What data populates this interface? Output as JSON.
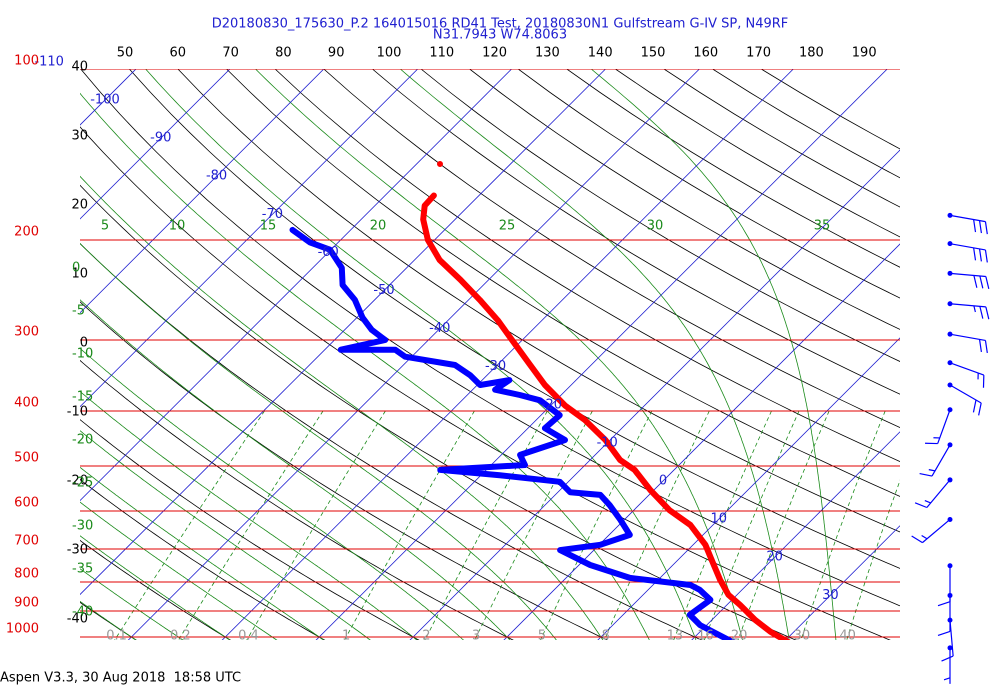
{
  "chart_data": {
    "type": "skewt",
    "title": "D20180830_175630_P.2 164015016 RD41 Test, 20180830N1 Gulfstream G-IV SP, N49RF",
    "subtitle": "N31.7943 W74.8063",
    "footer": "Aspen V3.3, 30 Aug 2018  18:58 UTC",
    "ylog": true,
    "ylim": [
      1000,
      100
    ],
    "yticks": [
      100,
      200,
      300,
      400,
      500,
      600,
      700,
      800,
      900,
      1000
    ],
    "isotherms": [
      -110,
      -100,
      -90,
      -80,
      -70,
      -60,
      -50,
      -40,
      -30,
      -20,
      -10,
      0,
      10,
      20,
      30
    ],
    "dry_adiabats": [
      -40,
      -30,
      -20,
      -10,
      0,
      10,
      20,
      30,
      40,
      50,
      60,
      70,
      80,
      90,
      100,
      110,
      120,
      130,
      140,
      150,
      160,
      170,
      180,
      190
    ],
    "moist_adiabats": [
      -40,
      -35,
      -30,
      -25,
      -20,
      -15,
      -10,
      -5,
      0,
      5,
      10,
      15,
      20,
      25,
      30,
      35
    ],
    "mixing_ratios": [
      0.1,
      0.2,
      0.4,
      1,
      2,
      3,
      5,
      8,
      13,
      16,
      20,
      30,
      40
    ],
    "series": [
      {
        "color": "#ff0000",
        "pressure": [
          147,
          null,
          167,
          174,
          184,
          200,
          217,
          235,
          255,
          277,
          300,
          332,
          360,
          391,
          415,
          450,
          488,
          508,
          551,
          598,
          635,
          688,
          732,
          793,
          843,
          878,
          933,
          979,
          1025
        ],
        "values": [
          -57.5,
          null,
          -54.8,
          -54.7,
          -53.4,
          -50.7,
          -47.3,
          -43.0,
          -38.8,
          -34.7,
          -31.1,
          -26.5,
          -22.8,
          -18.5,
          -14.8,
          -10.5,
          -6.8,
          -4.2,
          -0.4,
          3.8,
          7.6,
          11.3,
          13.6,
          16.6,
          19.1,
          21.4,
          24.6,
          27.5,
          30.8
        ]
      },
      {
        "color": "#0000ff",
        "pressure": [
          192,
          202,
          208,
          224,
          240,
          255,
          274,
          288,
          300,
          312,
          312,
          321,
          332,
          346,
          360,
          353,
          367,
          375,
          383,
          407,
          429,
          450,
          478,
          498,
          508,
          519,
          533,
          556,
          562,
          586,
          622,
          661,
          688,
          703,
          747,
          787,
          810,
          826,
          860,
          914,
          953,
          1025
        ],
        "values": [
          -66.2,
          -63.0,
          -60.1,
          -56.9,
          -55.0,
          -52.1,
          -49.4,
          -47.1,
          -44.6,
          -48.3,
          -42.5,
          -40.7,
          -34.5,
          -31.8,
          -29.7,
          -27.1,
          -27.6,
          -24.4,
          -21.7,
          -18.0,
          -18.2,
          -14.8,
          -18.0,
          -16.4,
          -24.9,
          -18.0,
          -10.9,
          -8.7,
          -5.2,
          -3.1,
          -0.4,
          2.2,
          0.1,
          -3.6,
          1.2,
          6.8,
          14.0,
          15.5,
          17.7,
          17.1,
          19.3,
          24.9
        ]
      }
    ],
    "wind": {
      "pressure": [
        181,
        203,
        229,
        259,
        293,
        329,
        360,
        398,
        459,
        529,
        621,
        749,
        845,
        934,
        1045
      ],
      "direction": [
        100,
        100,
        95,
        95,
        100,
        110,
        120,
        200,
        210,
        220,
        230,
        180,
        180,
        175,
        180
      ],
      "speed": [
        30,
        30,
        30,
        25,
        20,
        15,
        20,
        15,
        15,
        15,
        15,
        10,
        10,
        10,
        5
      ]
    }
  }
}
